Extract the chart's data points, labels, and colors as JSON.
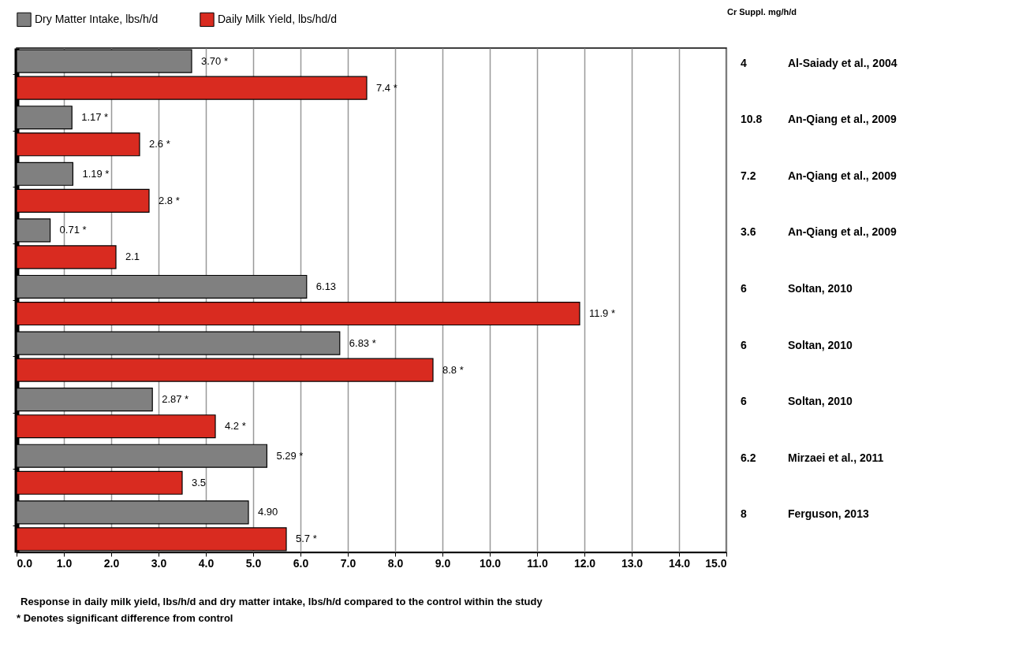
{
  "chart_data": {
    "type": "bar",
    "orientation": "horizontal",
    "categories": [
      "Al-Saiady et al., 2004",
      "An-Qiang et al., 2009",
      "An-Qiang et al., 2009",
      "An-Qiang et al., 2009",
      "Soltan, 2010",
      "Soltan, 2010",
      "Soltan, 2010",
      "Mirzaei et al., 2011",
      "Ferguson, 2013"
    ],
    "y2_categories": [
      "4",
      "10.8",
      "7.2",
      "3.6",
      "6",
      "6",
      "6",
      "6.2",
      "8"
    ],
    "series": [
      {
        "name": "Dry Matter Intake, lbs/h/d",
        "color": "#808080",
        "values": [
          3.7,
          1.17,
          1.19,
          0.71,
          6.13,
          6.83,
          2.87,
          5.29,
          4.9
        ],
        "value_labels": [
          "3.70  *",
          "1.17  *",
          "1.19  *",
          "0.71  *",
          "6.13",
          "6.83  *",
          "2.87  *",
          "5.29  *",
          "4.90"
        ]
      },
      {
        "name": "Daily Milk Yield, lbs/hd/d",
        "color": "#d92b20",
        "values": [
          7.4,
          2.6,
          2.8,
          2.1,
          11.9,
          8.8,
          4.2,
          3.5,
          5.7
        ],
        "value_labels": [
          "7.4  *",
          "2.6  *",
          "2.8  *",
          "2.1",
          "11.9  *",
          "8.8  *",
          "4.2  *",
          "3.5",
          "5.7  *"
        ]
      }
    ],
    "xlim": [
      0,
      15
    ],
    "xticks": [
      {
        "value": 0,
        "label": "0.0"
      },
      {
        "value": 1,
        "label": "1.0"
      },
      {
        "value": 2,
        "label": "2.0"
      },
      {
        "value": 3,
        "label": "3.0"
      },
      {
        "value": 4,
        "label": "4.0"
      },
      {
        "value": 5,
        "label": "5.0"
      },
      {
        "value": 6,
        "label": "6.0"
      },
      {
        "value": 7,
        "label": "7.0"
      },
      {
        "value": 8,
        "label": "8.0"
      },
      {
        "value": 9,
        "label": "9.0"
      },
      {
        "value": 10,
        "label": "10.0"
      },
      {
        "value": 11,
        "label": "11.0"
      },
      {
        "value": 12,
        "label": "12.0"
      },
      {
        "value": 13,
        "label": "13.0"
      },
      {
        "value": 14,
        "label": "14.0"
      },
      {
        "value": 15,
        "label": "15.0"
      }
    ],
    "grid": "x",
    "legend": "top left",
    "annotations": [
      "Cr Suppl. mg/h/d",
      "Response in daily milk yield, lbs/h/d and dry matter intake, lbs/h/d  compared to the control within the study",
      "* Denotes significant difference from  control"
    ]
  }
}
